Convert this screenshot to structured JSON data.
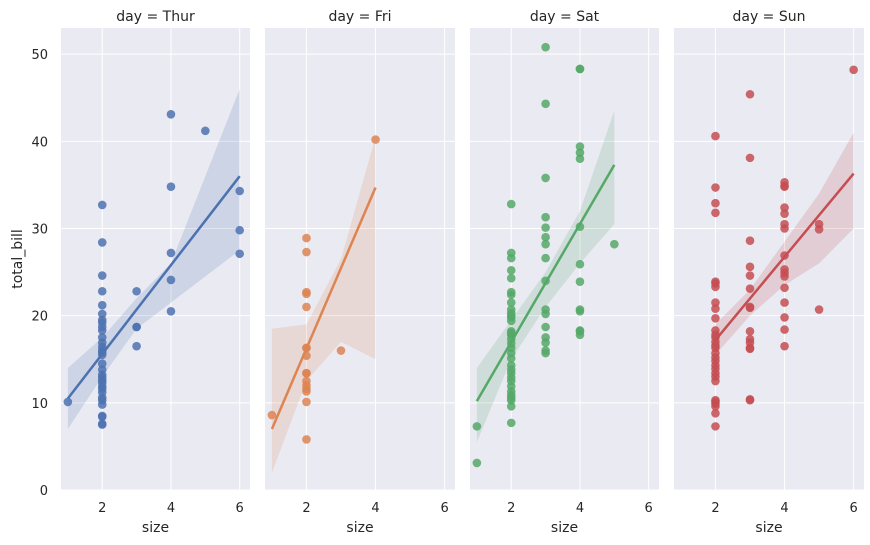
{
  "chart_data": {
    "type": "scatter",
    "x": "size",
    "y": "total_bill",
    "xlabel": "size",
    "ylabel": "total_bill",
    "xlim": [
      0.8,
      6.3
    ],
    "ylim": [
      0,
      53
    ],
    "xticks": [
      2,
      4,
      6
    ],
    "yticks": [
      0,
      10,
      20,
      30,
      40,
      50
    ],
    "grid": true,
    "fit": "linear regression with shaded confidence band",
    "facets": [
      {
        "title": "day = Thur",
        "color": "#4c72b0",
        "fit_line": {
          "x": [
            1,
            6
          ],
          "y": [
            10.5,
            36.0
          ]
        },
        "ci_band": {
          "x": [
            1,
            2,
            3,
            4,
            6
          ],
          "lower": [
            7.0,
            13.0,
            18.5,
            21.5,
            27.5
          ],
          "upper": [
            14.0,
            17.5,
            22.0,
            26.0,
            46.0
          ]
        },
        "points": [
          [
            1,
            10.1
          ],
          [
            2,
            32.7
          ],
          [
            2,
            28.4
          ],
          [
            2,
            24.6
          ],
          [
            2,
            22.8
          ],
          [
            2,
            21.2
          ],
          [
            2,
            19.5
          ],
          [
            2,
            19.2
          ],
          [
            2,
            18.7
          ],
          [
            2,
            18.3
          ],
          [
            2,
            17.5
          ],
          [
            2,
            16.9
          ],
          [
            2,
            16.4
          ],
          [
            2,
            16.0
          ],
          [
            2,
            15.5
          ],
          [
            2,
            14.5
          ],
          [
            2,
            13.8
          ],
          [
            2,
            13.2
          ],
          [
            2,
            12.9
          ],
          [
            2,
            12.6
          ],
          [
            2,
            11.9
          ],
          [
            2,
            11.6
          ],
          [
            2,
            11.2
          ],
          [
            2,
            10.6
          ],
          [
            2,
            10.3
          ],
          [
            2,
            9.8
          ],
          [
            2,
            8.5
          ],
          [
            2,
            8.4
          ],
          [
            2,
            7.6
          ],
          [
            2,
            7.5
          ],
          [
            2,
            15.8
          ],
          [
            2,
            20.2
          ],
          [
            2,
            12.3
          ],
          [
            3,
            22.8
          ],
          [
            3,
            18.7
          ],
          [
            3,
            16.5
          ],
          [
            3,
            18.7
          ],
          [
            4,
            43.1
          ],
          [
            4,
            34.8
          ],
          [
            4,
            27.2
          ],
          [
            4,
            24.1
          ],
          [
            4,
            20.5
          ],
          [
            5,
            41.2
          ],
          [
            6,
            34.3
          ],
          [
            6,
            29.8
          ],
          [
            6,
            27.1
          ]
        ]
      },
      {
        "title": "day = Fri",
        "color": "#dd8452",
        "fit_line": {
          "x": [
            1,
            4
          ],
          "y": [
            7.0,
            34.7
          ]
        },
        "ci_band": {
          "x": [
            1,
            2,
            3,
            4
          ],
          "lower": [
            2.0,
            12.5,
            17.0,
            15.0
          ],
          "upper": [
            18.5,
            19.0,
            26.5,
            40.5
          ]
        },
        "points": [
          [
            1,
            8.6
          ],
          [
            2,
            28.9
          ],
          [
            2,
            27.3
          ],
          [
            2,
            22.5
          ],
          [
            2,
            22.7
          ],
          [
            2,
            21.0
          ],
          [
            2,
            16.3
          ],
          [
            2,
            16.3
          ],
          [
            2,
            15.4
          ],
          [
            2,
            13.4
          ],
          [
            2,
            13.4
          ],
          [
            2,
            12.5
          ],
          [
            2,
            12.0
          ],
          [
            2,
            11.6
          ],
          [
            2,
            11.3
          ],
          [
            2,
            10.1
          ],
          [
            2,
            5.8
          ],
          [
            3,
            16.0
          ],
          [
            4,
            40.2
          ]
        ]
      },
      {
        "title": "day = Sat",
        "color": "#55a868",
        "fit_line": {
          "x": [
            1,
            5
          ],
          "y": [
            10.2,
            37.3
          ]
        },
        "ci_band": {
          "x": [
            1,
            2,
            3,
            4,
            5
          ],
          "lower": [
            5.5,
            15.0,
            21.0,
            26.0,
            30.5
          ],
          "upper": [
            14.0,
            19.5,
            25.0,
            32.0,
            43.5
          ]
        },
        "points": [
          [
            1,
            3.1
          ],
          [
            1,
            7.3
          ],
          [
            2,
            32.8
          ],
          [
            2,
            27.2
          ],
          [
            2,
            26.6
          ],
          [
            2,
            25.2
          ],
          [
            2,
            24.3
          ],
          [
            2,
            22.7
          ],
          [
            2,
            22.4
          ],
          [
            2,
            21.5
          ],
          [
            2,
            20.7
          ],
          [
            2,
            20.3
          ],
          [
            2,
            19.8
          ],
          [
            2,
            19.4
          ],
          [
            2,
            18.2
          ],
          [
            2,
            17.8
          ],
          [
            2,
            17.3
          ],
          [
            2,
            16.8
          ],
          [
            2,
            16.3
          ],
          [
            2,
            15.7
          ],
          [
            2,
            15.1
          ],
          [
            2,
            14.3
          ],
          [
            2,
            13.8
          ],
          [
            2,
            13.4
          ],
          [
            2,
            12.9
          ],
          [
            2,
            12.5
          ],
          [
            2,
            11.9
          ],
          [
            2,
            11.3
          ],
          [
            2,
            10.9
          ],
          [
            2,
            10.6
          ],
          [
            2,
            10.3
          ],
          [
            2,
            9.6
          ],
          [
            2,
            7.7
          ],
          [
            2,
            20.0
          ],
          [
            2,
            18.0
          ],
          [
            3,
            50.8
          ],
          [
            3,
            44.3
          ],
          [
            3,
            35.8
          ],
          [
            3,
            31.3
          ],
          [
            3,
            30.1
          ],
          [
            3,
            29.0
          ],
          [
            3,
            28.2
          ],
          [
            3,
            26.6
          ],
          [
            3,
            24.0
          ],
          [
            3,
            20.7
          ],
          [
            3,
            20.2
          ],
          [
            3,
            18.7
          ],
          [
            3,
            17.5
          ],
          [
            3,
            16.9
          ],
          [
            3,
            16.0
          ],
          [
            3,
            15.7
          ],
          [
            4,
            48.3
          ],
          [
            4,
            48.3
          ],
          [
            4,
            39.4
          ],
          [
            4,
            38.7
          ],
          [
            4,
            38.0
          ],
          [
            4,
            30.2
          ],
          [
            4,
            25.9
          ],
          [
            4,
            23.9
          ],
          [
            4,
            20.7
          ],
          [
            4,
            20.5
          ],
          [
            4,
            18.3
          ],
          [
            4,
            18.2
          ],
          [
            4,
            17.8
          ],
          [
            5,
            28.2
          ]
        ]
      },
      {
        "title": "day = Sun",
        "color": "#c44e52",
        "fit_line": {
          "x": [
            2,
            6
          ],
          "y": [
            17.2,
            36.3
          ]
        },
        "ci_band": {
          "x": [
            2,
            3,
            4,
            5,
            6
          ],
          "lower": [
            15.5,
            20.0,
            23.5,
            26.0,
            30.0
          ],
          "upper": [
            19.0,
            23.0,
            28.5,
            34.0,
            41.0
          ]
        },
        "points": [
          [
            2,
            40.6
          ],
          [
            2,
            34.7
          ],
          [
            2,
            32.9
          ],
          [
            2,
            31.8
          ],
          [
            2,
            23.9
          ],
          [
            2,
            23.7
          ],
          [
            2,
            23.3
          ],
          [
            2,
            21.5
          ],
          [
            2,
            20.8
          ],
          [
            2,
            19.7
          ],
          [
            2,
            18.3
          ],
          [
            2,
            17.8
          ],
          [
            2,
            17.5
          ],
          [
            2,
            17.0
          ],
          [
            2,
            16.6
          ],
          [
            2,
            16.3
          ],
          [
            2,
            15.7
          ],
          [
            2,
            15.2
          ],
          [
            2,
            14.8
          ],
          [
            2,
            14.3
          ],
          [
            2,
            13.9
          ],
          [
            2,
            13.4
          ],
          [
            2,
            13.0
          ],
          [
            2,
            12.5
          ],
          [
            2,
            10.3
          ],
          [
            2,
            10.1
          ],
          [
            2,
            9.9
          ],
          [
            2,
            9.6
          ],
          [
            2,
            8.8
          ],
          [
            2,
            7.3
          ],
          [
            3,
            45.4
          ],
          [
            3,
            38.1
          ],
          [
            3,
            28.6
          ],
          [
            3,
            25.6
          ],
          [
            3,
            24.6
          ],
          [
            3,
            23.1
          ],
          [
            3,
            21.0
          ],
          [
            3,
            20.9
          ],
          [
            3,
            18.2
          ],
          [
            3,
            17.3
          ],
          [
            3,
            16.9
          ],
          [
            3,
            16.3
          ],
          [
            3,
            16.2
          ],
          [
            3,
            10.3
          ],
          [
            3,
            10.4
          ],
          [
            4,
            35.3
          ],
          [
            4,
            34.8
          ],
          [
            4,
            34.9
          ],
          [
            4,
            32.4
          ],
          [
            4,
            31.7
          ],
          [
            4,
            30.5
          ],
          [
            4,
            30.0
          ],
          [
            4,
            26.9
          ],
          [
            4,
            25.3
          ],
          [
            4,
            24.9
          ],
          [
            4,
            24.5
          ],
          [
            4,
            23.2
          ],
          [
            4,
            21.5
          ],
          [
            4,
            19.8
          ],
          [
            4,
            18.4
          ],
          [
            4,
            16.5
          ],
          [
            5,
            30.5
          ],
          [
            5,
            29.9
          ],
          [
            5,
            20.7
          ],
          [
            6,
            48.2
          ]
        ]
      }
    ]
  }
}
